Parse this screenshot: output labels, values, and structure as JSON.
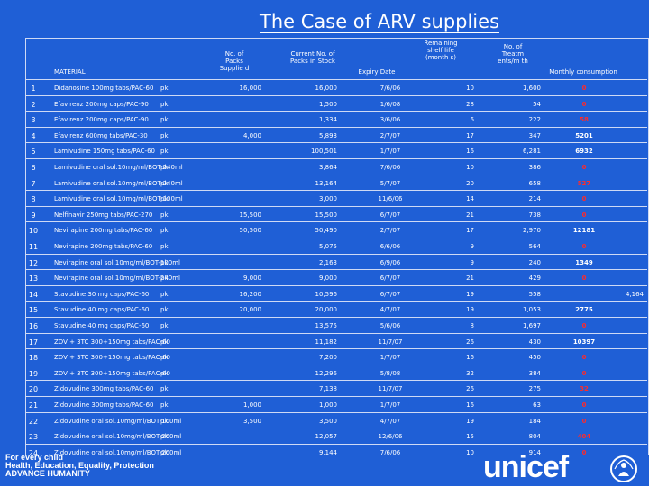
{
  "title": "The Case of ARV supplies",
  "headers": {
    "material": "MATERIAL",
    "packs": "No. of Packs Supplie d",
    "current": "Current No. of Packs in Stock",
    "expiry": "Expiry Date",
    "remaining": "Remaining shelf life (month s)",
    "ptm": "No. of Treatm ents/m th",
    "monthly": "Monthly consumption"
  },
  "rows": [
    {
      "n": "1",
      "mat": "Didanosine 100mg tabs/PAC-60",
      "unit": "pk",
      "packs": "16,000",
      "curr": "16,000",
      "exp": "7/6/06",
      "rem": "10",
      "ptm": "1,600",
      "mon": "0",
      "monColor": "red",
      "extra": ""
    },
    {
      "n": "2",
      "mat": "Efavirenz 200mg caps/PAC-90",
      "unit": "pk",
      "packs": "",
      "curr": "1,500",
      "exp": "1/6/08",
      "rem": "28",
      "ptm": "54",
      "mon": "0",
      "monColor": "red",
      "extra": ""
    },
    {
      "n": "3",
      "mat": "Efavirenz 200mg caps/PAC-90",
      "unit": "pk",
      "packs": "",
      "curr": "1,334",
      "exp": "3/6/06",
      "rem": "6",
      "ptm": "222",
      "mon": "58",
      "monColor": "red",
      "extra": ""
    },
    {
      "n": "4",
      "mat": "Efavirenz 600mg tabs/PAC-30",
      "unit": "pk",
      "packs": "4,000",
      "curr": "5,893",
      "exp": "2/7/07",
      "rem": "17",
      "ptm": "347",
      "mon": "5201",
      "monColor": "",
      "extra": ""
    },
    {
      "n": "5",
      "mat": "Lamivudine 150mg tabs/PAC-60",
      "unit": "pk",
      "packs": "",
      "curr": "100,501",
      "exp": "1/7/07",
      "rem": "16",
      "ptm": "6,281",
      "mon": "6932",
      "monColor": "",
      "extra": ""
    },
    {
      "n": "6",
      "mat": "Lamivudine oral sol.10mg/ml/BOT-240ml",
      "unit": "pk",
      "packs": "",
      "curr": "3,864",
      "exp": "7/6/06",
      "rem": "10",
      "ptm": "386",
      "mon": "0",
      "monColor": "red",
      "extra": ""
    },
    {
      "n": "7",
      "mat": "Lamivudine oral sol.10mg/ml/BOT-240ml",
      "unit": "pk",
      "packs": "",
      "curr": "13,164",
      "exp": "5/7/07",
      "rem": "20",
      "ptm": "658",
      "mon": "527",
      "monColor": "red",
      "extra": ""
    },
    {
      "n": "8",
      "mat": "Lamivudine oral sol.10mg/ml/BOT-100ml",
      "unit": "pk",
      "packs": "",
      "curr": "3,000",
      "exp": "11/6/06",
      "rem": "14",
      "ptm": "214",
      "mon": "0",
      "monColor": "red",
      "extra": ""
    },
    {
      "n": "9",
      "mat": "Nelfinavir 250mg tabs/PAC-270",
      "unit": "pk",
      "packs": "15,500",
      "curr": "15,500",
      "exp": "6/7/07",
      "rem": "21",
      "ptm": "738",
      "mon": "0",
      "monColor": "red",
      "extra": ""
    },
    {
      "n": "10",
      "mat": "Nevirapine 200mg tabs/PAC-60",
      "unit": "pk",
      "packs": "50,500",
      "curr": "50,490",
      "exp": "2/7/07",
      "rem": "17",
      "ptm": "2,970",
      "mon": "12181",
      "monColor": "",
      "extra": ""
    },
    {
      "n": "11",
      "mat": "Nevirapine 200mg tabs/PAC-60",
      "unit": "pk",
      "packs": "",
      "curr": "5,075",
      "exp": "6/6/06",
      "rem": "9",
      "ptm": "564",
      "mon": "0",
      "monColor": "red",
      "extra": ""
    },
    {
      "n": "12",
      "mat": "Nevirapine oral sol.10mg/ml/BOT-100ml",
      "unit": "pk",
      "packs": "",
      "curr": "2,163",
      "exp": "6/9/06",
      "rem": "9",
      "ptm": "240",
      "mon": "1349",
      "monColor": "",
      "extra": ""
    },
    {
      "n": "13",
      "mat": "Nevirapine oral sol.10mg/ml/BOT-240ml",
      "unit": "pk",
      "packs": "9,000",
      "curr": "9,000",
      "exp": "6/7/07",
      "rem": "21",
      "ptm": "429",
      "mon": "0",
      "monColor": "red",
      "extra": ""
    },
    {
      "n": "14",
      "mat": "Stavudine 30 mg caps/PAC-60",
      "unit": "pk",
      "packs": "16,200",
      "curr": "10,596",
      "exp": "6/7/07",
      "rem": "19",
      "ptm": "558",
      "mon": "",
      "monColor": "",
      "extra": "4,164"
    },
    {
      "n": "15",
      "mat": "Stavudine 40 mg caps/PAC-60",
      "unit": "pk",
      "packs": "20,000",
      "curr": "20,000",
      "exp": "4/7/07",
      "rem": "19",
      "ptm": "1,053",
      "mon": "2775",
      "monColor": "",
      "extra": ""
    },
    {
      "n": "16",
      "mat": "Stavudine 40 mg caps/PAC-60",
      "unit": "pk",
      "packs": "",
      "curr": "13,575",
      "exp": "5/6/06",
      "rem": "8",
      "ptm": "1,697",
      "mon": "0",
      "monColor": "red",
      "extra": ""
    },
    {
      "n": "17",
      "mat": "ZDV + 3TC 300+150mg tabs/PAC-60",
      "unit": "pk",
      "packs": "",
      "curr": "11,182",
      "exp": "11/7/07",
      "rem": "26",
      "ptm": "430",
      "mon": "10397",
      "monColor": "",
      "extra": ""
    },
    {
      "n": "18",
      "mat": "ZDV + 3TC 300+150mg tabs/PAC-60",
      "unit": "pk",
      "packs": "",
      "curr": "7,200",
      "exp": "1/7/07",
      "rem": "16",
      "ptm": "450",
      "mon": "0",
      "monColor": "red",
      "extra": ""
    },
    {
      "n": "19",
      "mat": "ZDV + 3TC 300+150mg tabs/PAC-60",
      "unit": "pk",
      "packs": "",
      "curr": "12,296",
      "exp": "5/8/08",
      "rem": "32",
      "ptm": "384",
      "mon": "0",
      "monColor": "red",
      "extra": ""
    },
    {
      "n": "20",
      "mat": "Zidovudine 300mg tabs/PAC-60",
      "unit": "pk",
      "packs": "",
      "curr": "7,138",
      "exp": "11/7/07",
      "rem": "26",
      "ptm": "275",
      "mon": "32",
      "monColor": "red",
      "extra": ""
    },
    {
      "n": "21",
      "mat": "Zidovudine 300mg tabs/PAC-60",
      "unit": "pk",
      "packs": "1,000",
      "curr": "1,000",
      "exp": "1/7/07",
      "rem": "16",
      "ptm": "63",
      "mon": "0",
      "monColor": "red",
      "extra": ""
    },
    {
      "n": "22",
      "mat": "Zidovudine oral sol.10mg/ml/BOT-100ml",
      "unit": "pk",
      "packs": "3,500",
      "curr": "3,500",
      "exp": "4/7/07",
      "rem": "19",
      "ptm": "184",
      "mon": "0",
      "monColor": "red",
      "extra": ""
    },
    {
      "n": "23",
      "mat": "Zidovudine oral sol.10mg/ml/BOT-200ml",
      "unit": "pk",
      "packs": "",
      "curr": "12,057",
      "exp": "12/6/06",
      "rem": "15",
      "ptm": "804",
      "mon": "404",
      "monColor": "red",
      "extra": ""
    },
    {
      "n": "24",
      "mat": "Zidovudine oral sol.10mg/ml/BOT-200ml",
      "unit": "pk",
      "packs": "",
      "curr": "9,144",
      "exp": "7/6/06",
      "rem": "10",
      "ptm": "914",
      "mon": "0",
      "monColor": "red",
      "extra": ""
    }
  ],
  "footer": {
    "line1": "For every child",
    "line2": "Health, Education, Equality, Protection",
    "line3": "ADVANCE HUMANITY"
  },
  "logo": {
    "text": "unicef",
    "emblem_icon": "unicef-emblem-icon"
  },
  "colors": {
    "background": "#1f5fd6",
    "red": "#ff2b2b",
    "grid": "#cfdaf5"
  }
}
